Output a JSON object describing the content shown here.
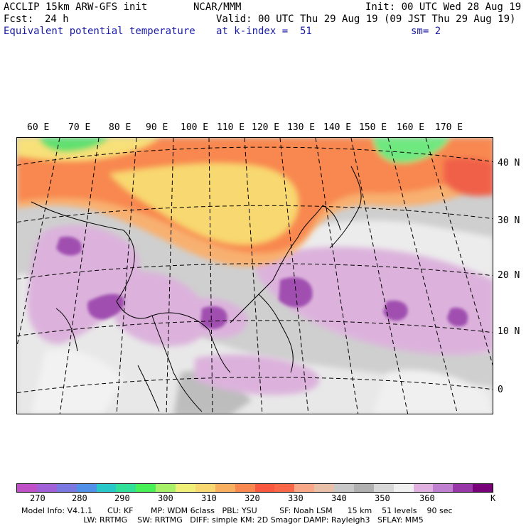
{
  "header": {
    "model_line": "ACCLIP 15km ARW-GFS init",
    "fcst_label": "Fcst:",
    "fcst_value": "24 h",
    "field_name": "Equivalent potential temperature",
    "center": "NCAR/MMM",
    "valid": "Valid: 00 UTC Thu 29 Aug 19 (09 JST Thu 29 Aug 19)",
    "level": "at k-index =  51",
    "init": "Init: 00 UTC Wed 28 Aug 19",
    "smooth": "sm= 2"
  },
  "longitude_labels": [
    "60 E",
    "70 E",
    "80 E",
    "90 E",
    "100 E",
    "110 E",
    "120 E",
    "130 E",
    "140 E",
    "150 E",
    "160 E",
    "170 E"
  ],
  "latitude_labels": [
    "40 N",
    "30 N",
    "20 N",
    "10 N",
    "0"
  ],
  "colorbar": {
    "colors": [
      "#c050c8",
      "#a060d8",
      "#7878e0",
      "#5090e8",
      "#28c8c8",
      "#30e098",
      "#48f058",
      "#a8f068",
      "#f0f078",
      "#f8d870",
      "#f8b060",
      "#f88850",
      "#f85840",
      "#f86848",
      "#f8a888",
      "#e8c0a8",
      "#c8c8c8",
      "#b0b0b0",
      "#d8d8d8",
      "#f0f0f0",
      "#e0b0e0",
      "#c080d0",
      "#9838a8",
      "#780078"
    ],
    "tick_labels": [
      "270",
      "280",
      "290",
      "300",
      "310",
      "320",
      "330",
      "340",
      "350",
      "360"
    ],
    "unit": "K"
  },
  "footer": {
    "line1": "Model Info: V4.1.1      CU: KF       MP: WDM 6class   PBL: YSU         SF: Noah LSM      15 km    51 levels    90 sec",
    "line2": "                         LW: RRTMG    SW: RRTMG   DIFF: simple KM: 2D Smagor DAMP: Rayleigh3   SFLAY: MM5"
  }
}
